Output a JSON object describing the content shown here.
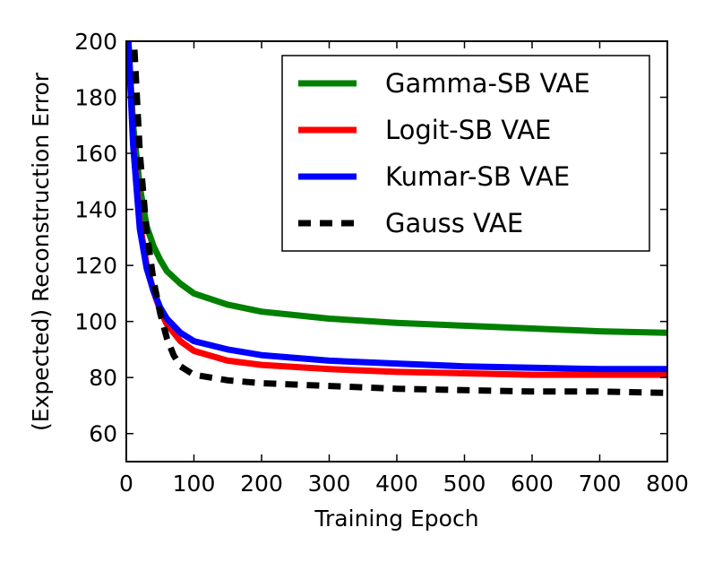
{
  "chart_data": {
    "type": "line",
    "title": "",
    "xlabel": "Training Epoch",
    "ylabel": "(Expected) Reconstruction Error",
    "xlim": [
      0,
      800
    ],
    "ylim": [
      50,
      200
    ],
    "xticks": [
      0,
      100,
      200,
      300,
      400,
      500,
      600,
      700,
      800
    ],
    "yticks": [
      60,
      80,
      100,
      120,
      140,
      160,
      180,
      200
    ],
    "grid": false,
    "legend_position": "top-right",
    "series": [
      {
        "name": "Gamma-SB VAE",
        "color": "#008000",
        "style": "solid",
        "x": [
          3,
          10,
          20,
          30,
          40,
          50,
          60,
          80,
          100,
          150,
          200,
          300,
          400,
          500,
          600,
          700,
          800
        ],
        "y": [
          200,
          170,
          148,
          134,
          127,
          122,
          118,
          113.5,
          110,
          106,
          103.5,
          101,
          99.5,
          98.5,
          97.5,
          96.5,
          96
        ]
      },
      {
        "name": "Logit-SB VAE",
        "color": "#ff0000",
        "style": "solid",
        "x": [
          3,
          10,
          20,
          30,
          40,
          50,
          60,
          80,
          100,
          150,
          200,
          300,
          400,
          500,
          600,
          700,
          800
        ],
        "y": [
          200,
          165,
          135,
          120,
          111,
          104,
          99,
          93,
          89.5,
          86,
          84.5,
          83,
          82,
          81.5,
          81,
          81,
          81
        ]
      },
      {
        "name": "Kumar-SB VAE",
        "color": "#0000ff",
        "style": "solid",
        "x": [
          3,
          10,
          20,
          30,
          40,
          50,
          60,
          80,
          100,
          150,
          200,
          300,
          400,
          500,
          600,
          700,
          800
        ],
        "y": [
          200,
          163,
          133,
          119,
          111,
          105,
          101,
          96,
          93,
          90,
          88,
          86,
          85,
          84,
          83.5,
          83,
          83
        ]
      },
      {
        "name": "Gauss VAE",
        "color": "#000000",
        "style": "dashed",
        "x": [
          12,
          20,
          30,
          40,
          50,
          60,
          70,
          80,
          100,
          150,
          200,
          300,
          400,
          500,
          600,
          700,
          800
        ],
        "y": [
          197,
          160,
          132,
          115,
          103,
          94,
          88,
          84,
          81,
          79,
          78,
          77,
          76,
          75.5,
          75,
          75,
          74.5
        ]
      }
    ]
  }
}
